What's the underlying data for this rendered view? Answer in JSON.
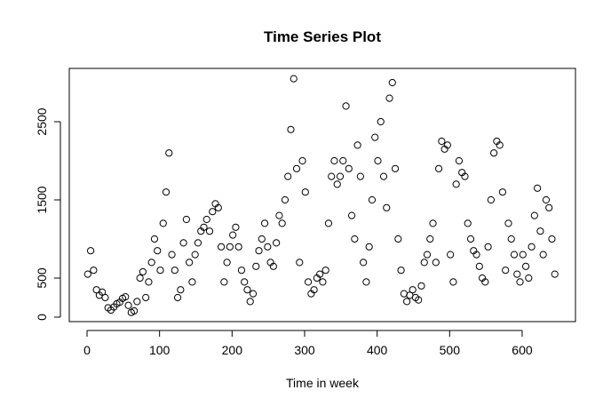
{
  "chart_data": {
    "type": "scatter",
    "title": "Time Series Plot",
    "x_label": "Time in week",
    "x": [
      1,
      5,
      9,
      13,
      17,
      21,
      25,
      29,
      33,
      37,
      41,
      45,
      49,
      53,
      57,
      61,
      65,
      69,
      73,
      77,
      81,
      85,
      89,
      93,
      97,
      101,
      105,
      109,
      113,
      117,
      121,
      125,
      129,
      133,
      137,
      141,
      145,
      149,
      153,
      157,
      161,
      165,
      169,
      173,
      177,
      181,
      185,
      189,
      193,
      197,
      201,
      205,
      209,
      213,
      217,
      221,
      225,
      229,
      233,
      237,
      241,
      245,
      249,
      253,
      257,
      261,
      265,
      269,
      273,
      277,
      281,
      285,
      289,
      293,
      297,
      301,
      305,
      309,
      313,
      317,
      321,
      325,
      329,
      333,
      337,
      341,
      345,
      349,
      353,
      357,
      361,
      365,
      369,
      373,
      377,
      381,
      385,
      389,
      393,
      397,
      401,
      405,
      409,
      413,
      417,
      421,
      425,
      429,
      433,
      437,
      441,
      445,
      449,
      453,
      457,
      461,
      465,
      469,
      473,
      477,
      481,
      485,
      489,
      493,
      497,
      501,
      505,
      509,
      513,
      517,
      521,
      525,
      529,
      533,
      537,
      541,
      545,
      549,
      553,
      557,
      561,
      565,
      569,
      573,
      577,
      581,
      585,
      589,
      593,
      597,
      601,
      605,
      609,
      613,
      617,
      621,
      625,
      629,
      633,
      637,
      641,
      645
    ],
    "values": [
      550,
      850,
      600,
      350,
      280,
      320,
      250,
      120,
      90,
      130,
      170,
      190,
      240,
      260,
      150,
      60,
      80,
      200,
      500,
      580,
      250,
      450,
      700,
      1000,
      850,
      600,
      1200,
      1600,
      2100,
      800,
      600,
      250,
      350,
      950,
      1250,
      700,
      450,
      800,
      950,
      1100,
      1150,
      1250,
      1100,
      1350,
      1450,
      1400,
      900,
      450,
      700,
      900,
      1050,
      1150,
      900,
      600,
      450,
      350,
      200,
      300,
      650,
      850,
      1000,
      1200,
      900,
      700,
      650,
      950,
      1300,
      1200,
      1500,
      1800,
      2400,
      3050,
      1900,
      700,
      2000,
      1600,
      450,
      300,
      350,
      500,
      550,
      450,
      600,
      1200,
      1800,
      2000,
      1700,
      1800,
      2000,
      2700,
      1900,
      1300,
      1000,
      2200,
      1800,
      700,
      450,
      900,
      1500,
      2300,
      2000,
      2500,
      1800,
      1400,
      2800,
      3000,
      1900,
      1000,
      600,
      300,
      200,
      280,
      350,
      250,
      220,
      400,
      700,
      800,
      1000,
      1200,
      700,
      1900,
      2250,
      2150,
      2200,
      800,
      450,
      1700,
      2000,
      1850,
      1800,
      1200,
      1000,
      850,
      800,
      650,
      500,
      450,
      900,
      1500,
      2100,
      2250,
      2200,
      1600,
      600,
      1200,
      1000,
      800,
      550,
      450,
      800,
      650,
      500,
      900,
      1300,
      1650,
      1100,
      800,
      1500,
      1400,
      1000,
      550
    ],
    "xlim": [
      -24.5,
      673.5
    ],
    "ylim": [
      -57,
      3182
    ],
    "xticks": [
      0,
      100,
      200,
      300,
      400,
      500,
      600
    ],
    "yticks": [
      0,
      500,
      1500,
      2500
    ],
    "color": "#000000",
    "grid": false
  }
}
